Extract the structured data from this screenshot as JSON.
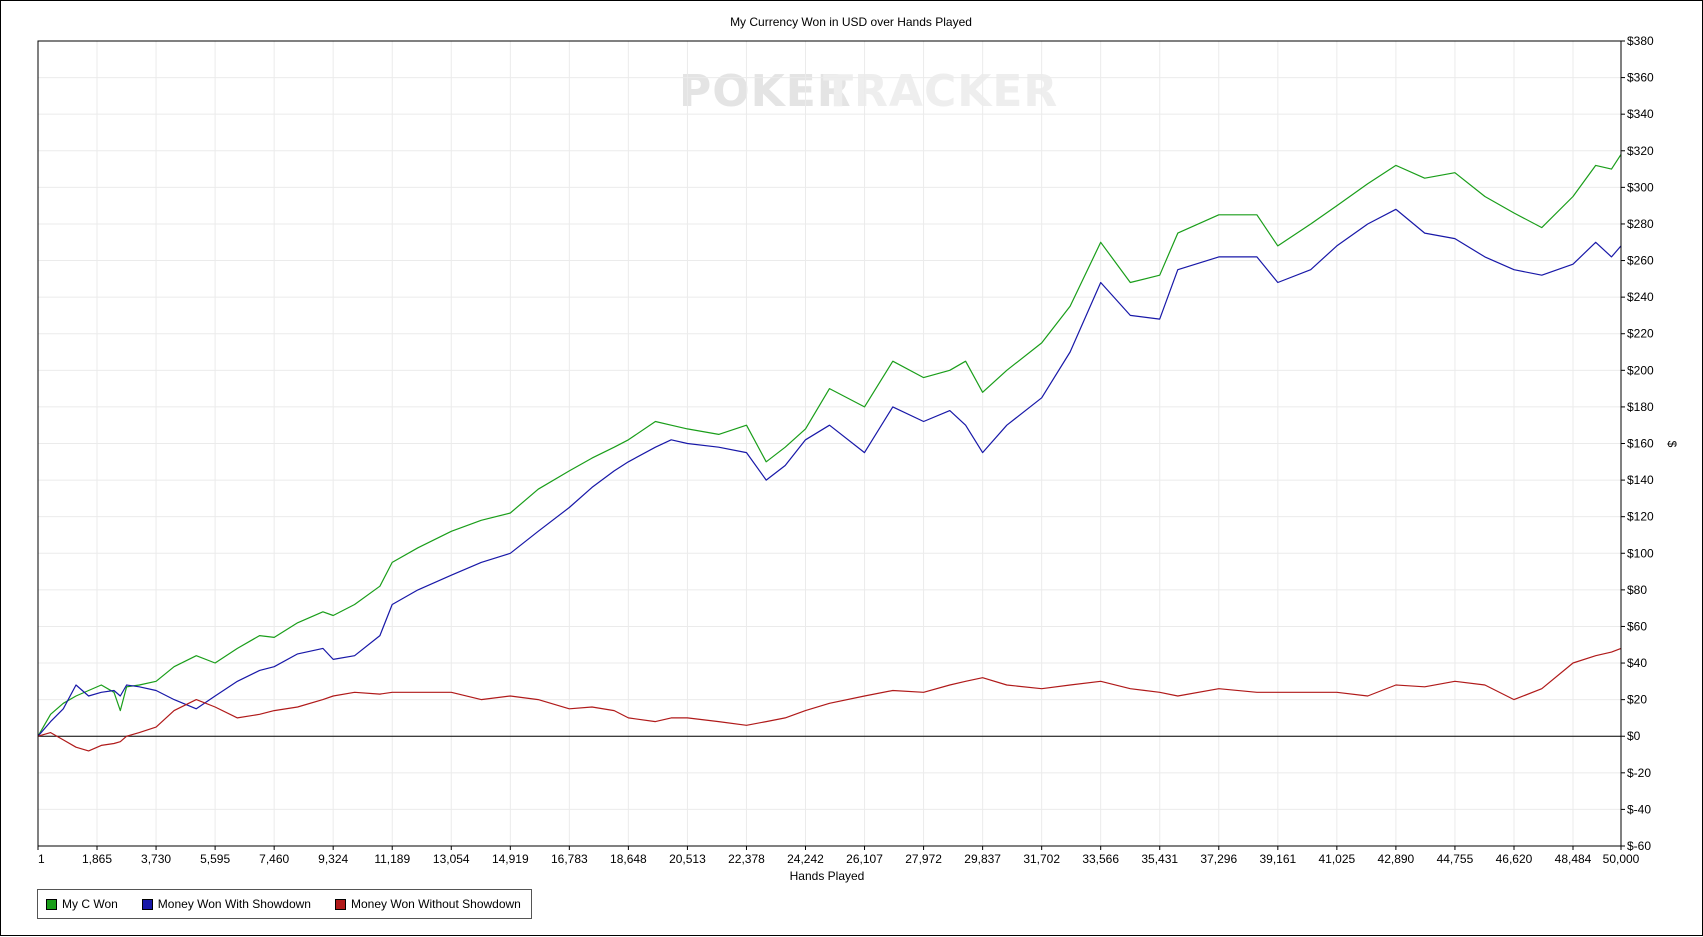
{
  "chart_data": {
    "type": "line",
    "title": "My Currency Won in USD over Hands Played",
    "watermark": {
      "part1": "POKER",
      "part2": "TRACKER"
    },
    "xlabel": "Hands Played",
    "ylabel": "$",
    "xlim": [
      1,
      50000
    ],
    "ylim": [
      -60,
      380
    ],
    "x_ticks": [
      "1",
      "1,865",
      "3,730",
      "5,595",
      "7,460",
      "9,324",
      "11,189",
      "13,054",
      "14,919",
      "16,783",
      "18,648",
      "20,513",
      "22,378",
      "24,242",
      "26,107",
      "27,972",
      "29,837",
      "31,702",
      "33,566",
      "35,431",
      "37,296",
      "39,161",
      "41,025",
      "42,890",
      "44,755",
      "46,620",
      "48,484",
      "50,000"
    ],
    "x_tick_values": [
      1,
      1865,
      3730,
      5595,
      7460,
      9324,
      11189,
      13054,
      14919,
      16783,
      18648,
      20513,
      22378,
      24242,
      26107,
      27972,
      29837,
      31702,
      33566,
      35431,
      37296,
      39161,
      41025,
      42890,
      44755,
      46620,
      48484,
      50000
    ],
    "y_ticks": [
      "$380",
      "$360",
      "$340",
      "$320",
      "$300",
      "$280",
      "$260",
      "$240",
      "$220",
      "$200",
      "$180",
      "$160",
      "$140",
      "$120",
      "$100",
      "$80",
      "$60",
      "$40",
      "$20",
      "$0",
      "$-20",
      "$-40",
      "$-60"
    ],
    "y_tick_values": [
      380,
      360,
      340,
      320,
      300,
      280,
      260,
      240,
      220,
      200,
      180,
      160,
      140,
      120,
      100,
      80,
      60,
      40,
      20,
      0,
      -20,
      -40,
      -60
    ],
    "grid": true,
    "legend_position": "bottom-left",
    "series": [
      {
        "name": "My C Won",
        "color": "#1a9e1a",
        "x": [
          1,
          400,
          800,
          1200,
          1600,
          2000,
          2400,
          2600,
          2800,
          3200,
          3730,
          4300,
          5000,
          5595,
          6300,
          7000,
          7460,
          8200,
          9000,
          9324,
          10000,
          10800,
          11189,
          12000,
          13054,
          14000,
          14919,
          15800,
          16783,
          17500,
          18200,
          18648,
          19500,
          20000,
          20513,
          21500,
          22378,
          23000,
          23600,
          24242,
          25000,
          26107,
          27000,
          27972,
          28800,
          29300,
          29837,
          30600,
          31702,
          32600,
          33566,
          34500,
          35431,
          36000,
          37296,
          38500,
          39161,
          40200,
          41025,
          42000,
          42890,
          43800,
          44755,
          45700,
          46620,
          47500,
          48484,
          49200,
          49700,
          50000
        ],
        "values": [
          0,
          12,
          18,
          22,
          25,
          28,
          24,
          14,
          27,
          28,
          30,
          38,
          44,
          40,
          48,
          55,
          54,
          62,
          68,
          66,
          72,
          82,
          95,
          103,
          112,
          118,
          122,
          135,
          145,
          152,
          158,
          162,
          172,
          170,
          168,
          165,
          170,
          150,
          158,
          168,
          190,
          180,
          205,
          196,
          200,
          205,
          188,
          200,
          215,
          235,
          270,
          248,
          252,
          275,
          285,
          285,
          268,
          280,
          290,
          302,
          312,
          305,
          308,
          295,
          286,
          278,
          295,
          312,
          310,
          318
        ]
      },
      {
        "name": "Money Won With Showdown",
        "color": "#1818a8",
        "x": [
          1,
          400,
          800,
          1200,
          1600,
          2000,
          2400,
          2600,
          2800,
          3200,
          3730,
          4300,
          5000,
          5595,
          6300,
          7000,
          7460,
          8200,
          9000,
          9324,
          10000,
          10800,
          11189,
          12000,
          13054,
          14000,
          14919,
          15800,
          16783,
          17500,
          18200,
          18648,
          19500,
          20000,
          20513,
          21500,
          22378,
          23000,
          23600,
          24242,
          25000,
          26107,
          27000,
          27972,
          28800,
          29300,
          29837,
          30600,
          31702,
          32600,
          33566,
          34500,
          35431,
          36000,
          37296,
          38500,
          39161,
          40200,
          41025,
          42000,
          42890,
          43800,
          44755,
          45700,
          46620,
          47500,
          48484,
          49200,
          49700,
          50000
        ],
        "values": [
          0,
          8,
          15,
          28,
          22,
          24,
          25,
          22,
          28,
          27,
          25,
          20,
          15,
          22,
          30,
          36,
          38,
          45,
          48,
          42,
          44,
          55,
          72,
          80,
          88,
          95,
          100,
          112,
          125,
          136,
          145,
          150,
          158,
          162,
          160,
          158,
          155,
          140,
          148,
          162,
          170,
          155,
          180,
          172,
          178,
          170,
          155,
          170,
          185,
          210,
          248,
          230,
          228,
          255,
          262,
          262,
          248,
          255,
          268,
          280,
          288,
          275,
          272,
          262,
          255,
          252,
          258,
          270,
          262,
          268
        ]
      },
      {
        "name": "Money Won Without Showdown",
        "color": "#b01a1a",
        "x": [
          1,
          400,
          800,
          1200,
          1600,
          2000,
          2400,
          2600,
          2800,
          3200,
          3730,
          4300,
          5000,
          5595,
          6300,
          7000,
          7460,
          8200,
          9000,
          9324,
          10000,
          10800,
          11189,
          12000,
          13054,
          14000,
          14919,
          15800,
          16783,
          17500,
          18200,
          18648,
          19500,
          20000,
          20513,
          21500,
          22378,
          23000,
          23600,
          24242,
          25000,
          26107,
          27000,
          27972,
          28800,
          29300,
          29837,
          30600,
          31702,
          32600,
          33566,
          34500,
          35431,
          36000,
          37296,
          38500,
          39161,
          40200,
          41025,
          42000,
          42890,
          43800,
          44755,
          45700,
          46620,
          47500,
          48484,
          49200,
          49700,
          50000
        ],
        "values": [
          0,
          2,
          -2,
          -6,
          -8,
          -5,
          -4,
          -3,
          0,
          2,
          5,
          14,
          20,
          16,
          10,
          12,
          14,
          16,
          20,
          22,
          24,
          23,
          24,
          24,
          24,
          20,
          22,
          20,
          15,
          16,
          14,
          10,
          8,
          10,
          10,
          8,
          6,
          8,
          10,
          14,
          18,
          22,
          25,
          24,
          28,
          30,
          32,
          28,
          26,
          28,
          30,
          26,
          24,
          22,
          26,
          24,
          24,
          24,
          24,
          22,
          28,
          27,
          30,
          28,
          20,
          26,
          40,
          44,
          46,
          48
        ]
      }
    ]
  }
}
